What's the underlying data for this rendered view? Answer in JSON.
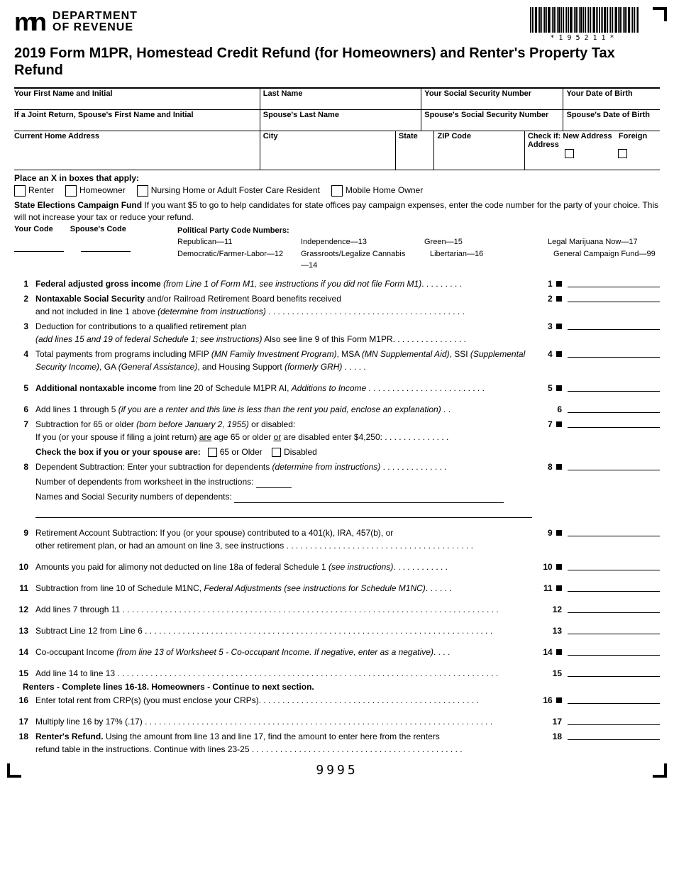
{
  "header": {
    "dept_line1": "DEPARTMENT",
    "dept_line2": "OF REVENUE",
    "barcode_text": "*195211*",
    "title": "2019 Form M1PR, Homestead Credit Refund (for Homeowners) and Renter's Property Tax Refund"
  },
  "id": {
    "r1": [
      {
        "label": "Your First Name and Initial",
        "w": "38%"
      },
      {
        "label": "Last Name",
        "w": "25%"
      },
      {
        "label": "Your Social Security Number",
        "w": "22%"
      },
      {
        "label": "Your Date of Birth",
        "w": "15%"
      }
    ],
    "r2": [
      {
        "label": "If a Joint Return, Spouse's First Name and Initial",
        "w": "38%"
      },
      {
        "label": "Spouse's Last Name",
        "w": "25%"
      },
      {
        "label": "Spouse's Social Security Number",
        "w": "22%"
      },
      {
        "label": "Spouse's Date of Birth",
        "w": "15%"
      }
    ],
    "r3": [
      {
        "label": "Current Home Address",
        "w": "38%"
      },
      {
        "label": "City",
        "w": "21%"
      },
      {
        "label": "State",
        "w": "6%"
      },
      {
        "label": "ZIP Code",
        "w": "14%"
      },
      {
        "label": "Check if: New Address   Foreign Address",
        "w": "21%",
        "checks": true
      }
    ]
  },
  "apply": {
    "title": "Place an X in boxes that apply:",
    "opts": [
      "Renter",
      "Homeowner",
      "Nursing Home or Adult Foster Care Resident",
      "Mobile Home Owner"
    ]
  },
  "campaign": {
    "head": "State Elections Campaign Fund",
    "body": "If you want $5 to go to help candidates for state offices pay campaign expenses, enter the code number for the party of your choice. This will not increase your tax or reduce your refund.",
    "your_code": "Your Code",
    "spouse_code": "Spouse's Code",
    "pb_title": "Political Party Code Numbers:",
    "parties": [
      [
        "Republican—11",
        "Independence—13",
        "Green—15",
        "Legal Marijuana Now—17"
      ],
      [
        "Democratic/Farmer-Labor—12",
        "Grassroots/Legalize Cannabis—14",
        "Libertarian—16",
        "General Campaign Fund—99"
      ]
    ]
  },
  "lines": [
    {
      "n": "1",
      "html": "<span class='b'>Federal adjusted gross income</span> <span class='i'>(from Line 1 of Form M1, see instructions if you did not file Form M1)</span>. . . . . . . . .",
      "tail": "1",
      "mk": true
    },
    {
      "n": "2",
      "html": "<span class='b'>Nontaxable Social Security</span> and/or Railroad Retirement Board benefits received<br>and not included in line 1 above <span class='i'>(determine from instructions)</span> . . . . . . . . . . . . . . . . . . . . . . . . . . . . . . . . . . . . . . . . . .",
      "tail": "2",
      "mk": true
    },
    {
      "n": "3",
      "html": "Deduction for contributions to a qualified retirement plan<br><span class='i'>(add lines 15 and 19 of federal Schedule 1; see instructions)</span> Also see line 9 of this Form M1PR. . . . . . . . . . . . . . . .",
      "tail": "3",
      "mk": true
    },
    {
      "n": "4",
      "html": "Total payments from programs including MFIP <span class='i'>(MN Family Investment Program)</span>, MSA <span class='i'>(MN Supplemental Aid)</span>, SSI <span class='i'>(Supplemental Security Income)</span>, GA <span class='i'>(General Assistance)</span>, and Housing Support <span class='i'>(formerly GRH)</span>   . . . . .",
      "tail": "4",
      "mk": true
    },
    {
      "gap": true
    },
    {
      "n": "5",
      "html": "<span class='b'>Additional nontaxable income</span> from line 20 of Schedule M1PR AI, <span class='i'>Additions to Income</span> . . . . . . . . . . . . . . . . . . . . . . . . .",
      "tail": "5",
      "mk": true
    },
    {
      "gap": true
    },
    {
      "n": "6",
      "html": "Add lines 1 through 5 <span class='i'>(if you are a renter and this line is less than the rent you paid, enclose an explanation)</span> . .",
      "tail": "6",
      "mk": false
    },
    {
      "n": "7",
      "html": "Subtraction for 65 or older <span class='i'>(born before January 2, 1955)</span> or disabled:<br>If you (or your spouse if filing a joint return) <u>are</u> age 65 or older <u>or</u> are disabled enter $4,250:  . . . . . . . . . . . . . .",
      "tail": "7",
      "mk": true,
      "extra": "chk7"
    },
    {
      "n": "8",
      "html": "Dependent Subtraction:  Enter your subtraction for dependents <span class='i'>(determine from instructions)</span> . . . . . . . . . . . . . .",
      "tail": "8",
      "mk": true,
      "extra": "dep"
    },
    {
      "gap": true
    },
    {
      "n": "9",
      "html": "Retirement Account Subtraction: If you (or your spouse) contributed to a 401(k), IRA, 457(b), or<br>other retirement plan, or had an amount on line 3, see instructions  . . . . . . . . . . . . . . . . . . . . . . . . . . . . . . . . . . . . . . . .",
      "tail": "9",
      "mk": true
    },
    {
      "gap": true
    },
    {
      "n": "10",
      "html": "Amounts you paid for alimony not deducted on line 18a of federal Schedule 1 <span class='i'>(see instructions)</span>. . . . . . . . . . . .",
      "tail": "10",
      "mk": true
    },
    {
      "gap": true
    },
    {
      "n": "11",
      "html": "Subtraction from line 10 of Schedule M1NC, <span class='i'>Federal Adjustments (see instructions for Schedule M1NC)</span>. . . . . .",
      "tail": "11",
      "mk": true
    },
    {
      "gap": true
    },
    {
      "n": "12",
      "html": "Add lines 7 through 11 . . . . . . . . . . . . . . . . . . . . . . . . . . . . . . . . . . . . . . . . . . . . . . . . . . . . . . . . . . . . . . . . . . . . . . . . . . . . . . . .",
      "tail": "12",
      "mk": false
    },
    {
      "gap": true
    },
    {
      "n": "13",
      "html": "Subtract Line 12 from Line 6  . . . . . . . . . . . . . . . . . . . . . . . . . . . . . . . . . . . . . . . . . . . . . . . . . . . . . . . . . . . . . . . . . . . . . . . . . .",
      "tail": "13",
      "mk": false
    },
    {
      "gap": true
    },
    {
      "n": "14",
      "html": "Co-occupant Income <span class='i'>(from line 13 of Worksheet 5 - Co-occupant Income. If negative, enter as a negative)</span>. . . .",
      "tail": "14",
      "mk": true
    },
    {
      "gap": true
    },
    {
      "n": "15",
      "html": "Add line 14 to line 13 . . . . . . . . . . . . . . . . . . . . . . . . . . . . . . . . . . . . . . . . . . . . . . . . . . . . . . . . . . . . . . . . . . . . . . . . . . . . . . . . .",
      "tail": "15",
      "mk": false
    },
    {
      "note": "Renters - Complete lines 16-18. Homeowners - Continue to next section."
    },
    {
      "n": "16",
      "html": "Enter total rent from CRP(s) (you must enclose your CRPs). . . . . . . . . . . . . . . . . . . . . . . . . . . . . . . . . . . . . . . . . . . . . . .",
      "tail": "16",
      "mk": true
    },
    {
      "gap": true
    },
    {
      "n": "17",
      "html": "Multiply line 16 by 17% (.17) . . . . . . . . . . . . . . . . . . . . . . . . . . . . . . . . . . . . . . . . . . . . . . . . . . . . . . . . . . . . . . . . . . . . . . . . . .",
      "tail": "17",
      "mk": false
    },
    {
      "n": "18",
      "html": "<span class='b'>Renter's Refund.</span> Using the amount from line 13 and line 17, find the amount to enter here from the renters<br>refund table in the instructions. Continue with lines 23-25  . . . . . . . . . . . . . . . . . . . . . . . . . . . . . . . . . . . . . . . . . . . . .",
      "tail": "18",
      "mk": false
    }
  ],
  "chk7": {
    "lead": "Check the box if you or your spouse are:",
    "a": "65 or Older",
    "b": "Disabled"
  },
  "dep": {
    "a": "Number of dependents from worksheet in the instructions:",
    "b": "Names and Social Security numbers of dependents:"
  },
  "footer": "9995"
}
